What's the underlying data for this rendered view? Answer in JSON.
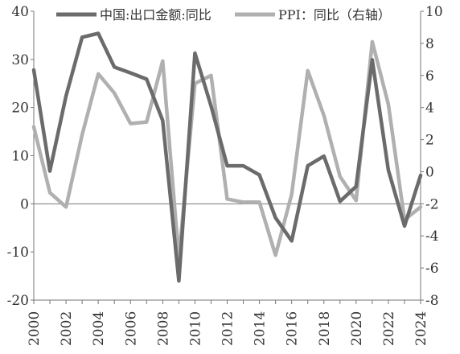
{
  "chart_data": {
    "type": "line",
    "x": [
      2000,
      2001,
      2002,
      2003,
      2004,
      2005,
      2006,
      2007,
      2008,
      2009,
      2010,
      2011,
      2012,
      2013,
      2014,
      2015,
      2016,
      2017,
      2018,
      2019,
      2020,
      2021,
      2022,
      2023,
      2024
    ],
    "x_tick_labels": [
      "2000",
      "2002",
      "2004",
      "2006",
      "2008",
      "2010",
      "2012",
      "2014",
      "2016",
      "2018",
      "2020",
      "2022",
      "2024"
    ],
    "series": [
      {
        "name": "中国:出口金额:同比",
        "axis": "left",
        "color": "#6b6b6b",
        "values": [
          27.8,
          6.8,
          22.4,
          34.6,
          35.4,
          28.4,
          27.2,
          25.9,
          17.3,
          -16.0,
          31.3,
          20.3,
          7.9,
          7.9,
          6.0,
          -2.9,
          -7.7,
          7.9,
          9.9,
          0.5,
          3.6,
          29.9,
          7.0,
          -4.6,
          5.9
        ]
      },
      {
        "name": "PPI：同比（右轴）",
        "axis": "right",
        "color": "#b0b0b0",
        "values": [
          2.8,
          -1.3,
          -2.2,
          2.3,
          6.1,
          4.9,
          3.0,
          3.1,
          6.9,
          -5.4,
          5.5,
          6.0,
          -1.7,
          -1.9,
          -1.9,
          -5.2,
          -1.4,
          6.3,
          3.5,
          -0.3,
          -1.8,
          8.1,
          4.2,
          -3.0,
          -2.2
        ]
      }
    ],
    "y_left": {
      "min": -20,
      "max": 40,
      "ticks": [
        "40",
        "30",
        "20",
        "10",
        "0",
        "-10",
        "-20"
      ]
    },
    "y_right": {
      "min": -8,
      "max": 10,
      "ticks": [
        "10",
        "8",
        "6",
        "4",
        "2",
        "0",
        "-2",
        "-4",
        "-6",
        "-8"
      ]
    },
    "legend": [
      {
        "label": "中国:出口金额:同比",
        "color": "#6b6b6b"
      },
      {
        "label": "PPI：同比（右轴）",
        "color": "#b0b0b0"
      }
    ],
    "legend_position": "top",
    "grid": false
  }
}
